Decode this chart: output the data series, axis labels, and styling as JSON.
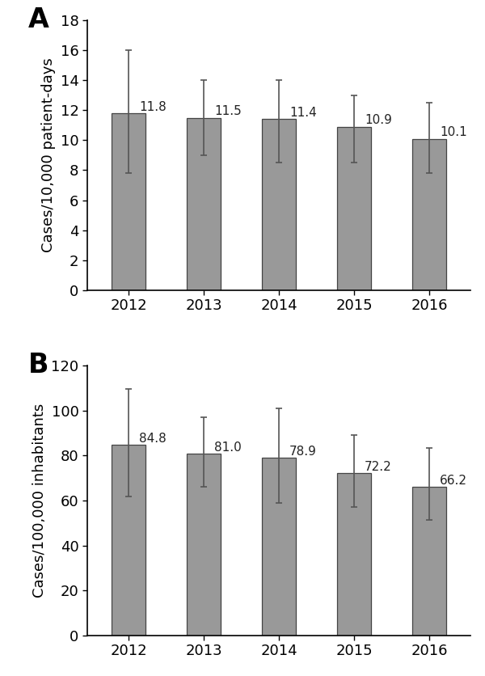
{
  "years": [
    "2012",
    "2013",
    "2014",
    "2015",
    "2016"
  ],
  "panel_a": {
    "values": [
      11.8,
      11.5,
      11.4,
      10.9,
      10.1
    ],
    "errors_upper": [
      4.2,
      2.5,
      2.6,
      2.1,
      2.4
    ],
    "errors_lower": [
      4.0,
      2.5,
      2.9,
      2.4,
      2.3
    ],
    "ylabel": "Cases/10,000 patient-days",
    "ylim": [
      0,
      18
    ],
    "yticks": [
      0,
      2,
      4,
      6,
      8,
      10,
      12,
      14,
      16,
      18
    ],
    "label": "A"
  },
  "panel_b": {
    "values": [
      84.8,
      81.0,
      78.9,
      72.2,
      66.2
    ],
    "errors_upper": [
      25.0,
      16.0,
      22.0,
      17.0,
      17.0
    ],
    "errors_lower": [
      23.0,
      15.0,
      20.0,
      15.0,
      15.0
    ],
    "ylabel": "Cases/100,000 inhabitants",
    "ylim": [
      0,
      120
    ],
    "yticks": [
      0,
      20,
      40,
      60,
      80,
      100,
      120
    ],
    "label": "B"
  },
  "bar_color": "#999999",
  "bar_edgecolor": "#444444",
  "bar_width": 0.45,
  "errorbar_color": "#555555",
  "errorbar_linewidth": 1.2,
  "errorbar_capsize": 3,
  "label_fontsize": 24,
  "tick_fontsize": 13,
  "ylabel_fontsize": 13,
  "value_fontsize": 11,
  "background_color": "#ffffff"
}
